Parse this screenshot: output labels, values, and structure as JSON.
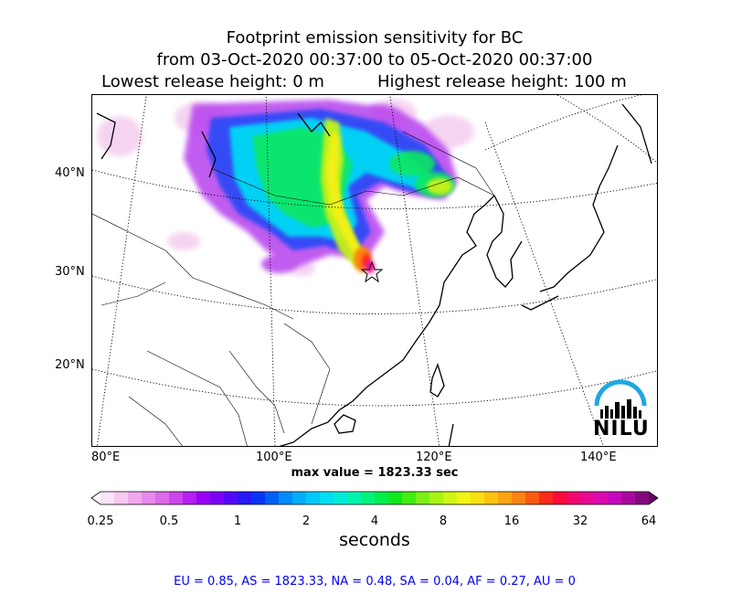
{
  "title": {
    "line1": "Footprint emission sensitivity for BC",
    "line2": "from 03-Oct-2020 00:37:00 to 05-Oct-2020 00:37:00",
    "lowest_release": "Lowest release height: 0 m",
    "highest_release": "Highest release height: 100 m"
  },
  "axes": {
    "lat_labels": [
      "40°N",
      "30°N",
      "20°N"
    ],
    "lon_labels": [
      "80°E",
      "100°E",
      "120°E",
      "140°E"
    ]
  },
  "max_value_text": "max value = 1823.33 sec",
  "colorbar": {
    "ticks": [
      "0.25",
      "0.5",
      "1",
      "2",
      "4",
      "8",
      "16",
      "32",
      "64"
    ],
    "label": "seconds",
    "colors": [
      "#ffffff",
      "#fbe4f8",
      "#f6c8f2",
      "#f0a8ee",
      "#e888ec",
      "#dc6aea",
      "#cc46ec",
      "#b51ff0",
      "#9a00f4",
      "#7a00f5",
      "#5208f7",
      "#2a18f6",
      "#0835f5",
      "#0060f6",
      "#008cf8",
      "#00aef9",
      "#00cafa",
      "#00def4",
      "#00ecd8",
      "#00f4b0",
      "#00f47c",
      "#00ee4a",
      "#10e820",
      "#44ec10",
      "#7af014",
      "#a8f414",
      "#d2f614",
      "#f2f414",
      "#fae010",
      "#fbc410",
      "#fba410",
      "#fb8410",
      "#fb5a10",
      "#fb2a1a",
      "#fa0a3a",
      "#f2086a",
      "#e80892",
      "#dc08b0",
      "#c608bc",
      "#a6089c",
      "#84087c",
      "#640860"
    ]
  },
  "stats_text": "EU = 0.85,  AS = 1823.33,  NA = 0.48,  SA = 0.04,  AF = 0.27,  AU = 0",
  "stats_color": "#0000ff",
  "logo": {
    "text": "NILU",
    "arc_color": "#1ea8e0"
  }
}
